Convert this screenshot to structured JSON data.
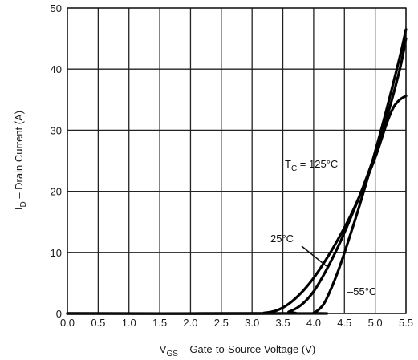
{
  "chart_data": {
    "type": "line",
    "title": "",
    "xlabel": {
      "main": "V",
      "sub": "GS",
      "rest": " – Gate-to-Source Voltage (V)"
    },
    "ylabel": {
      "main": "I",
      "sub": "D",
      "rest": " – Drain Current (A)"
    },
    "xlim": [
      0,
      5.5
    ],
    "ylim": [
      0,
      50
    ],
    "x_ticks": [
      "0.0",
      "0.5",
      "1.0",
      "1.5",
      "2.0",
      "2.5",
      "3.0",
      "3.5",
      "4.0",
      "4.5",
      "5.0",
      "5.5"
    ],
    "y_ticks": [
      "0",
      "10",
      "20",
      "30",
      "40",
      "50"
    ],
    "grid": true,
    "series": [
      {
        "key": "tc-125",
        "x": [
          0,
          3.0,
          3.2,
          3.4,
          3.6,
          3.8,
          4.0,
          4.2,
          4.4,
          4.6,
          4.8,
          5.0,
          5.1,
          5.2,
          5.3,
          5.4,
          5.5
        ],
        "y": [
          0,
          0,
          0.1,
          0.5,
          1.6,
          3.4,
          5.8,
          8.8,
          12.2,
          16.0,
          20.5,
          25.5,
          28.5,
          31.5,
          33.8,
          35.0,
          35.6
        ]
      },
      {
        "key": "tc-25",
        "x": [
          0,
          3.4,
          3.6,
          3.8,
          4.0,
          4.2,
          4.4,
          4.6,
          4.8,
          5.0,
          5.2,
          5.4,
          5.5
        ],
        "y": [
          0,
          0,
          0.3,
          1.4,
          3.6,
          7.0,
          11.0,
          15.6,
          20.6,
          26.2,
          32.5,
          40.0,
          45.0
        ]
      },
      {
        "key": "tc-minus55",
        "x": [
          0,
          3.9,
          4.0,
          4.1,
          4.2,
          4.4,
          4.6,
          4.8,
          5.0,
          5.2,
          5.4,
          5.5
        ],
        "y": [
          0,
          0,
          0.1,
          0.8,
          2.2,
          7.0,
          13.0,
          19.5,
          26.5,
          34.0,
          42.0,
          46.5
        ]
      }
    ],
    "annotations": {
      "tc125": {
        "main": "T",
        "sub": "C",
        "rest": " = 125°C"
      },
      "tc25": "25°C",
      "tcm55": "–55°C"
    }
  }
}
